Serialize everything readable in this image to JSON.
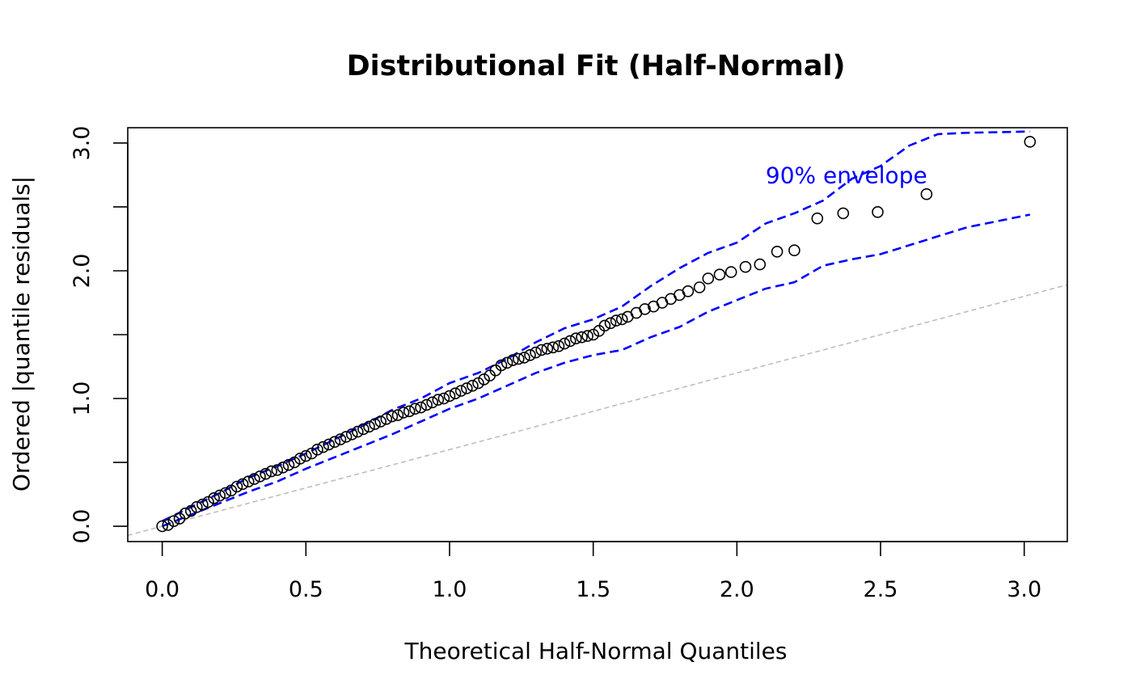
{
  "chart_data": {
    "type": "scatter",
    "title": "Distributional Fit (Half-Normal)",
    "xlabel": "Theoretical Half-Normal Quantiles",
    "ylabel": "Ordered |quantile residuals|",
    "xlim": [
      -0.12,
      3.15
    ],
    "ylim": [
      -0.12,
      3.12
    ],
    "x_ticks": [
      0.0,
      0.5,
      1.0,
      1.5,
      2.0,
      2.5,
      3.0
    ],
    "x_tick_labels": [
      "0.0",
      "0.5",
      "1.0",
      "1.5",
      "2.0",
      "2.5",
      "3.0"
    ],
    "y_ticks": [
      0.0,
      0.5,
      1.0,
      1.5,
      2.0,
      2.5,
      3.0
    ],
    "y_tick_labels": [
      "0.0",
      "",
      "1.0",
      "",
      "2.0",
      "",
      "3.0"
    ],
    "grid": false,
    "annotation": {
      "text": "90% envelope",
      "color": "#0000ff",
      "x": 2.1,
      "y": 2.75
    },
    "series": [
      {
        "kind": "points",
        "marker": "open-circle",
        "color": "#000000",
        "x": [
          0.0,
          0.02,
          0.04,
          0.06,
          0.08,
          0.1,
          0.12,
          0.14,
          0.16,
          0.18,
          0.2,
          0.22,
          0.24,
          0.26,
          0.28,
          0.3,
          0.32,
          0.34,
          0.36,
          0.38,
          0.4,
          0.42,
          0.44,
          0.46,
          0.48,
          0.5,
          0.52,
          0.54,
          0.56,
          0.58,
          0.6,
          0.62,
          0.64,
          0.66,
          0.68,
          0.7,
          0.72,
          0.74,
          0.76,
          0.78,
          0.8,
          0.82,
          0.84,
          0.86,
          0.88,
          0.9,
          0.92,
          0.94,
          0.96,
          0.98,
          1.0,
          1.02,
          1.04,
          1.06,
          1.08,
          1.1,
          1.12,
          1.14,
          1.16,
          1.18,
          1.2,
          1.22,
          1.24,
          1.26,
          1.28,
          1.3,
          1.32,
          1.34,
          1.36,
          1.38,
          1.4,
          1.42,
          1.44,
          1.46,
          1.48,
          1.5,
          1.52,
          1.54,
          1.56,
          1.58,
          1.6,
          1.62,
          1.65,
          1.68,
          1.71,
          1.74,
          1.77,
          1.8,
          1.83,
          1.87,
          1.9,
          1.94,
          1.98,
          2.03,
          2.08,
          2.14,
          2.2,
          2.28,
          2.37,
          2.49,
          2.66,
          3.02
        ],
        "y": [
          0.0,
          0.01,
          0.04,
          0.06,
          0.1,
          0.12,
          0.15,
          0.17,
          0.19,
          0.22,
          0.24,
          0.26,
          0.28,
          0.31,
          0.33,
          0.35,
          0.37,
          0.39,
          0.41,
          0.43,
          0.44,
          0.46,
          0.48,
          0.5,
          0.53,
          0.55,
          0.57,
          0.6,
          0.62,
          0.64,
          0.66,
          0.68,
          0.7,
          0.72,
          0.74,
          0.76,
          0.78,
          0.8,
          0.82,
          0.84,
          0.86,
          0.87,
          0.89,
          0.9,
          0.92,
          0.93,
          0.95,
          0.97,
          0.99,
          1.0,
          1.02,
          1.04,
          1.06,
          1.08,
          1.1,
          1.12,
          1.15,
          1.18,
          1.22,
          1.26,
          1.28,
          1.3,
          1.31,
          1.32,
          1.34,
          1.36,
          1.38,
          1.39,
          1.4,
          1.41,
          1.43,
          1.45,
          1.47,
          1.48,
          1.49,
          1.5,
          1.53,
          1.57,
          1.59,
          1.61,
          1.62,
          1.64,
          1.67,
          1.7,
          1.72,
          1.75,
          1.78,
          1.81,
          1.84,
          1.87,
          1.94,
          1.97,
          1.99,
          2.03,
          2.05,
          2.15,
          2.16,
          2.41,
          2.45,
          2.46,
          2.6,
          3.01
        ]
      },
      {
        "kind": "line",
        "style": "dashed",
        "color": "#0000ff",
        "x": [
          0.0,
          0.1,
          0.2,
          0.3,
          0.4,
          0.5,
          0.6,
          0.7,
          0.8,
          0.9,
          1.0,
          1.1,
          1.2,
          1.3,
          1.4,
          1.5,
          1.6,
          1.7,
          1.8,
          1.9,
          2.0,
          2.1,
          2.2,
          2.3,
          2.4,
          2.5,
          2.6,
          2.7,
          2.8,
          3.02
        ],
        "y": [
          0.04,
          0.15,
          0.26,
          0.38,
          0.47,
          0.57,
          0.68,
          0.79,
          0.91,
          1.0,
          1.12,
          1.2,
          1.31,
          1.44,
          1.55,
          1.62,
          1.72,
          1.88,
          2.02,
          2.14,
          2.22,
          2.37,
          2.45,
          2.55,
          2.72,
          2.82,
          2.98,
          3.07,
          3.08,
          3.09
        ]
      },
      {
        "kind": "line",
        "style": "dashed",
        "color": "#0000ff",
        "x": [
          0.0,
          0.1,
          0.2,
          0.3,
          0.4,
          0.5,
          0.6,
          0.7,
          0.8,
          0.9,
          1.0,
          1.1,
          1.2,
          1.3,
          1.4,
          1.5,
          1.6,
          1.7,
          1.8,
          1.9,
          2.0,
          2.1,
          2.2,
          2.3,
          2.4,
          2.5,
          2.6,
          2.7,
          2.8,
          3.02
        ],
        "y": [
          0.0,
          0.09,
          0.18,
          0.27,
          0.35,
          0.45,
          0.54,
          0.63,
          0.72,
          0.82,
          0.92,
          1.0,
          1.1,
          1.2,
          1.28,
          1.34,
          1.38,
          1.48,
          1.56,
          1.68,
          1.77,
          1.86,
          1.91,
          2.04,
          2.09,
          2.13,
          2.2,
          2.27,
          2.34,
          2.44
        ]
      },
      {
        "kind": "reference-line",
        "style": "dashed",
        "color": "#bebebe",
        "intercept": 0.0,
        "slope": 0.6
      }
    ]
  }
}
